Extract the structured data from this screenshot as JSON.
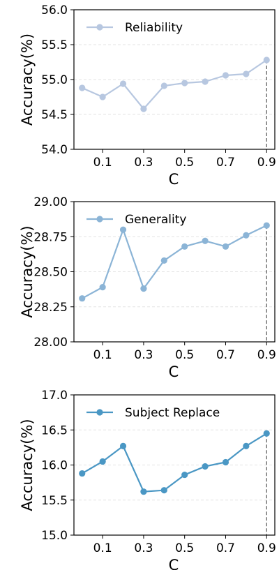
{
  "chart_data": [
    {
      "type": "line",
      "x": [
        0.0,
        0.1,
        0.2,
        0.3,
        0.4,
        0.5,
        0.6,
        0.7,
        0.8,
        0.9
      ],
      "series": [
        {
          "name": "Reliability",
          "values": [
            54.88,
            54.75,
            54.94,
            54.58,
            54.91,
            54.95,
            54.97,
            55.06,
            55.08,
            55.28
          ],
          "color": "#b7c7e0"
        }
      ],
      "xlabel": "C",
      "ylabel": "Accuracy(%)",
      "ylim": [
        54.0,
        56.0
      ],
      "xlim": [
        -0.04,
        0.94
      ],
      "yticks": [
        "54.0",
        "54.5",
        "55.0",
        "55.5",
        "56.0"
      ],
      "xticks": [
        "0.1",
        "0.3",
        "0.5",
        "0.7",
        "0.9"
      ],
      "xtick_values": [
        0.1,
        0.3,
        0.5,
        0.7,
        0.9
      ],
      "ytick_values": [
        54.0,
        54.5,
        55.0,
        55.5,
        56.0
      ],
      "grid": "horizontal-dashed",
      "legend": "top-left",
      "marker_line_x": 0.9
    },
    {
      "type": "line",
      "x": [
        0.0,
        0.1,
        0.2,
        0.3,
        0.4,
        0.5,
        0.6,
        0.7,
        0.8,
        0.9
      ],
      "series": [
        {
          "name": "Generality",
          "values": [
            28.31,
            28.39,
            28.8,
            28.38,
            28.58,
            28.68,
            28.72,
            28.68,
            28.76,
            28.83
          ],
          "color": "#8bb4d6"
        }
      ],
      "xlabel": "C",
      "ylabel": "Accuracy(%)",
      "ylim": [
        28.0,
        29.0
      ],
      "xlim": [
        -0.04,
        0.94
      ],
      "yticks": [
        "28.00",
        "28.25",
        "28.50",
        "28.75",
        "29.00"
      ],
      "xticks": [
        "0.1",
        "0.3",
        "0.5",
        "0.7",
        "0.9"
      ],
      "xtick_values": [
        0.1,
        0.3,
        0.5,
        0.7,
        0.9
      ],
      "ytick_values": [
        28.0,
        28.25,
        28.5,
        28.75,
        29.0
      ],
      "grid": "horizontal-dashed",
      "legend": "top-left",
      "marker_line_x": 0.9
    },
    {
      "type": "line",
      "x": [
        0.0,
        0.1,
        0.2,
        0.3,
        0.4,
        0.5,
        0.6,
        0.7,
        0.8,
        0.9
      ],
      "series": [
        {
          "name": "Subject Replace",
          "values": [
            15.88,
            16.05,
            16.27,
            15.62,
            15.64,
            15.86,
            15.98,
            16.04,
            16.27,
            16.45
          ],
          "color": "#4a97c4"
        }
      ],
      "xlabel": "C",
      "ylabel": "Accuracy(%)",
      "ylim": [
        15.0,
        17.0
      ],
      "xlim": [
        -0.04,
        0.94
      ],
      "yticks": [
        "15.0",
        "15.5",
        "16.0",
        "16.5",
        "17.0"
      ],
      "xticks": [
        "0.1",
        "0.3",
        "0.5",
        "0.7",
        "0.9"
      ],
      "xtick_values": [
        0.1,
        0.3,
        0.5,
        0.7,
        0.9
      ],
      "ytick_values": [
        15.0,
        15.5,
        16.0,
        16.5,
        17.0
      ],
      "grid": "horizontal-dashed",
      "legend": "top-left",
      "marker_line_x": 0.9
    }
  ]
}
